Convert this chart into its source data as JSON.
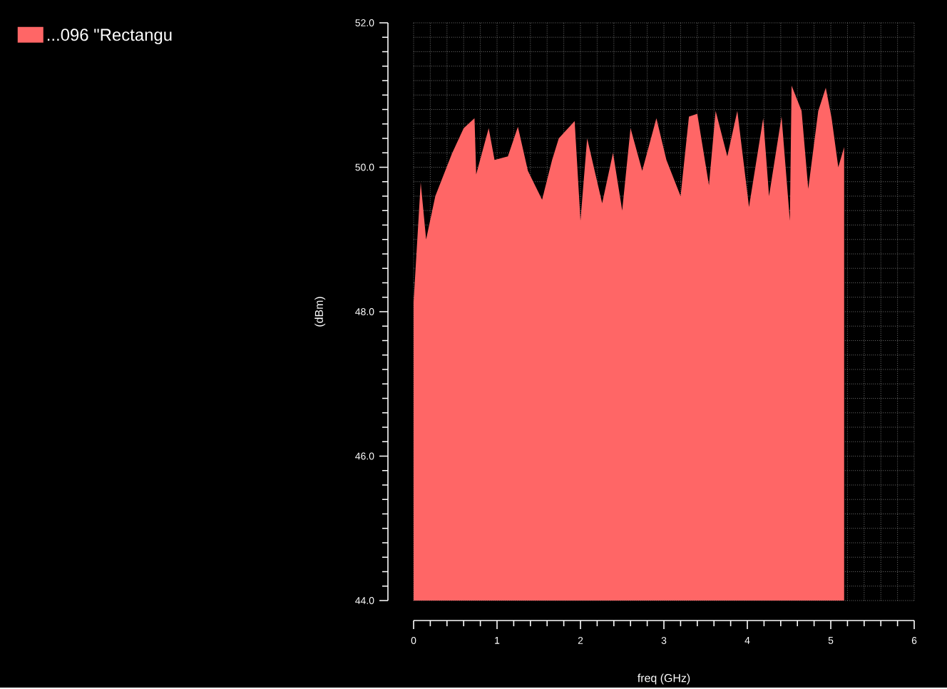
{
  "chart_data": {
    "type": "area",
    "xlabel": "freq (GHz)",
    "ylabel": "(dBm)",
    "series": [
      {
        "name": "...096 \"Rectangu",
        "color": "#ff6666",
        "x": [
          0,
          0.085,
          0.15,
          0.26,
          0.46,
          0.6,
          0.73,
          0.75,
          0.9,
          0.97,
          1.13,
          1.25,
          1.37,
          1.54,
          1.66,
          1.74,
          1.93,
          2.0,
          2.08,
          2.26,
          2.39,
          2.5,
          2.6,
          2.74,
          2.91,
          3.03,
          3.2,
          3.3,
          3.4,
          3.54,
          3.62,
          3.76,
          3.88,
          4.02,
          4.19,
          4.26,
          4.41,
          4.51,
          4.53,
          4.65,
          4.73,
          4.85,
          4.94,
          5.01,
          5.09,
          5.16
        ],
        "values": [
          48.13,
          49.79,
          49.0,
          49.6,
          50.19,
          50.54,
          50.68,
          49.9,
          50.54,
          50.1,
          50.15,
          50.56,
          49.95,
          49.55,
          50.1,
          50.4,
          50.64,
          49.26,
          50.4,
          49.5,
          50.2,
          49.4,
          50.54,
          49.95,
          50.68,
          50.1,
          49.6,
          50.7,
          50.74,
          49.75,
          50.78,
          50.15,
          50.78,
          49.45,
          50.68,
          49.6,
          50.7,
          49.26,
          51.13,
          50.78,
          49.7,
          50.78,
          51.1,
          50.68,
          50.0,
          50.28
        ]
      }
    ],
    "xlim": [
      0,
      6
    ],
    "xticks": [
      0,
      1,
      2,
      3,
      4,
      5,
      6
    ],
    "ylim": [
      44,
      52
    ],
    "yticks": [
      {
        "value": 44,
        "label": "44.0"
      },
      {
        "value": 46,
        "label": "46.0"
      },
      {
        "value": 48,
        "label": "48.0"
      },
      {
        "value": 50,
        "label": "50.0"
      },
      {
        "value": 52,
        "label": "52.0"
      }
    ],
    "grid": true,
    "legend": "top left"
  }
}
